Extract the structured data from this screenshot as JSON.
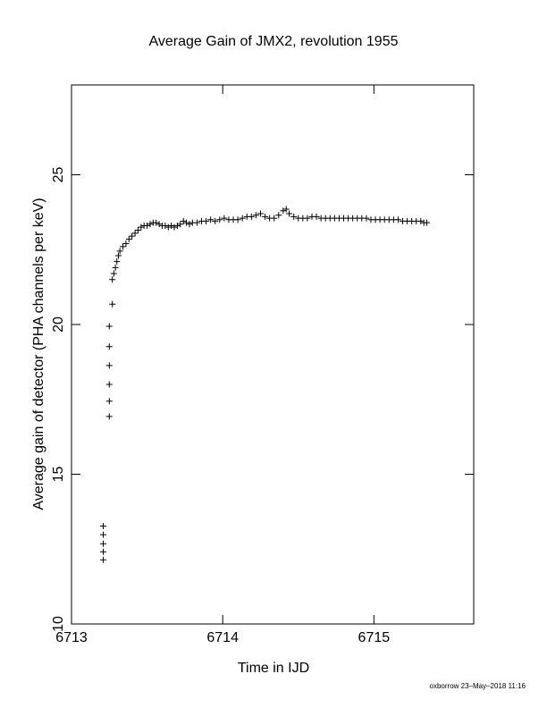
{
  "chart_data": {
    "type": "scatter",
    "title": "Average Gain of JMX2, revolution 1955",
    "x_label": "Time in IJD",
    "y_label": "Average gain of detector (PHA channels per keV)",
    "footer": "oxborrow 23–May–2018 11:16",
    "xlim": [
      6713,
      6715.66
    ],
    "ylim": [
      10,
      28
    ],
    "xticks": [
      6713,
      6714,
      6715
    ],
    "yticks": [
      10,
      15,
      20,
      25
    ],
    "marker_color": "#000000",
    "x": [
      6713.21,
      6713.21,
      6713.21,
      6713.21,
      6713.21,
      6713.25,
      6713.25,
      6713.25,
      6713.25,
      6713.25,
      6713.25,
      6713.27,
      6713.27,
      6713.28,
      6713.29,
      6713.3,
      6713.31,
      6713.32,
      6713.34,
      6713.36,
      6713.38,
      6713.4,
      6713.42,
      6713.44,
      6713.46,
      6713.48,
      6713.5,
      6713.52,
      6713.54,
      6713.56,
      6713.58,
      6713.6,
      6713.62,
      6713.64,
      6713.66,
      6713.68,
      6713.7,
      6713.72,
      6713.74,
      6713.76,
      6713.78,
      6713.8,
      6713.83,
      6713.86,
      6713.89,
      6713.92,
      6713.95,
      6713.98,
      6714.01,
      6714.04,
      6714.07,
      6714.1,
      6714.13,
      6714.16,
      6714.19,
      6714.22,
      6714.25,
      6714.28,
      6714.31,
      6714.34,
      6714.37,
      6714.4,
      6714.42,
      6714.44,
      6714.47,
      6714.5,
      6714.53,
      6714.56,
      6714.59,
      6714.62,
      6714.65,
      6714.68,
      6714.71,
      6714.74,
      6714.77,
      6714.8,
      6714.83,
      6714.86,
      6714.89,
      6714.92,
      6714.95,
      6714.98,
      6715.01,
      6715.04,
      6715.07,
      6715.1,
      6715.13,
      6715.16,
      6715.19,
      6715.22,
      6715.25,
      6715.28,
      6715.31,
      6715.33,
      6715.35
    ],
    "y": [
      12.14,
      12.41,
      12.68,
      12.98,
      13.27,
      16.93,
      17.44,
      18.0,
      18.63,
      19.26,
      19.94,
      20.68,
      21.5,
      21.7,
      21.9,
      22.1,
      22.3,
      22.45,
      22.6,
      22.7,
      22.85,
      22.95,
      23.05,
      23.15,
      23.25,
      23.3,
      23.3,
      23.35,
      23.4,
      23.4,
      23.35,
      23.3,
      23.3,
      23.25,
      23.3,
      23.25,
      23.3,
      23.35,
      23.45,
      23.4,
      23.35,
      23.4,
      23.4,
      23.45,
      23.45,
      23.5,
      23.45,
      23.5,
      23.55,
      23.5,
      23.5,
      23.5,
      23.55,
      23.6,
      23.6,
      23.65,
      23.7,
      23.6,
      23.55,
      23.55,
      23.65,
      23.8,
      23.85,
      23.7,
      23.6,
      23.55,
      23.55,
      23.55,
      23.6,
      23.6,
      23.55,
      23.55,
      23.55,
      23.55,
      23.55,
      23.55,
      23.55,
      23.55,
      23.55,
      23.55,
      23.55,
      23.5,
      23.5,
      23.5,
      23.5,
      23.5,
      23.5,
      23.5,
      23.45,
      23.45,
      23.45,
      23.45,
      23.45,
      23.4,
      23.4
    ]
  }
}
